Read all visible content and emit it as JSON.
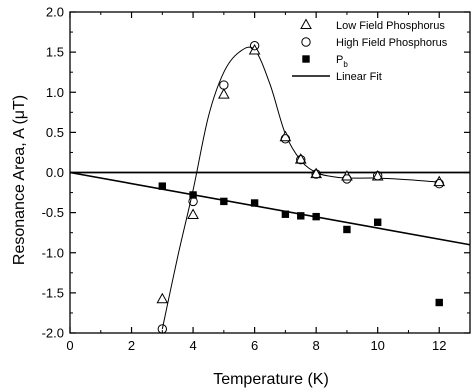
{
  "chart_data": {
    "type": "scatter",
    "xlabel": "Temperature (K)",
    "ylabel": "Resonance Area, A (μT)",
    "xlim": [
      0,
      13
    ],
    "ylim": [
      -2.0,
      2.0
    ],
    "xticks": [
      0,
      2,
      4,
      6,
      8,
      10,
      12
    ],
    "xtick_labels": [
      "0",
      "2",
      "4",
      "6",
      "8",
      "10",
      "12"
    ],
    "yticks": [
      -2.0,
      -1.5,
      -1.0,
      -0.5,
      0.0,
      0.5,
      1.0,
      1.5,
      2.0
    ],
    "ytick_labels": [
      "-2.0",
      "-1.5",
      "-1.0",
      "-0.5",
      "0.0",
      "0.5",
      "1.0",
      "1.5",
      "2.0"
    ],
    "legend_position": "top-right",
    "series": [
      {
        "name": "Low Field Phosphorus",
        "marker": "open-triangle",
        "x": [
          3,
          4,
          5,
          6,
          7,
          7.5,
          8,
          9,
          10,
          12
        ],
        "y": [
          -1.58,
          -0.53,
          0.97,
          1.52,
          0.44,
          0.16,
          -0.02,
          -0.05,
          -0.05,
          -0.12
        ]
      },
      {
        "name": "High Field Phosphorus",
        "marker": "open-circle",
        "x": [
          3,
          4,
          5,
          6,
          7,
          7.5,
          8,
          9,
          10,
          12
        ],
        "y": [
          -1.95,
          -0.36,
          1.09,
          1.58,
          0.42,
          0.16,
          -0.02,
          -0.08,
          -0.04,
          -0.14
        ]
      },
      {
        "name": "P",
        "name_subscript": "b",
        "marker": "filled-square",
        "x": [
          3,
          4,
          5,
          6,
          7,
          7.5,
          8,
          9,
          10,
          12
        ],
        "y": [
          -0.17,
          -0.28,
          -0.36,
          -0.38,
          -0.52,
          -0.54,
          -0.55,
          -0.71,
          -0.62,
          -1.62
        ]
      }
    ],
    "lines": [
      {
        "name": "Linear Fit",
        "x": [
          0,
          13
        ],
        "y": [
          0,
          -0.9
        ]
      },
      {
        "name": "",
        "style": "smooth-curve",
        "x": [
          3,
          3.5,
          4,
          4.5,
          5,
          5.5,
          6,
          6.5,
          7,
          7.5,
          8,
          8.5,
          9,
          10,
          11,
          12
        ],
        "y": [
          -1.95,
          -1.05,
          -0.22,
          0.7,
          1.25,
          1.5,
          1.53,
          1.1,
          0.48,
          0.15,
          0.0,
          -0.05,
          -0.07,
          -0.07,
          -0.09,
          -0.12
        ]
      },
      {
        "name": "",
        "style": "baseline",
        "x": [
          0,
          13
        ],
        "y": [
          0,
          0
        ]
      }
    ],
    "colors": {
      "marker": "#000000",
      "line": "#000000",
      "background": "#ffffff"
    },
    "grid": false
  }
}
